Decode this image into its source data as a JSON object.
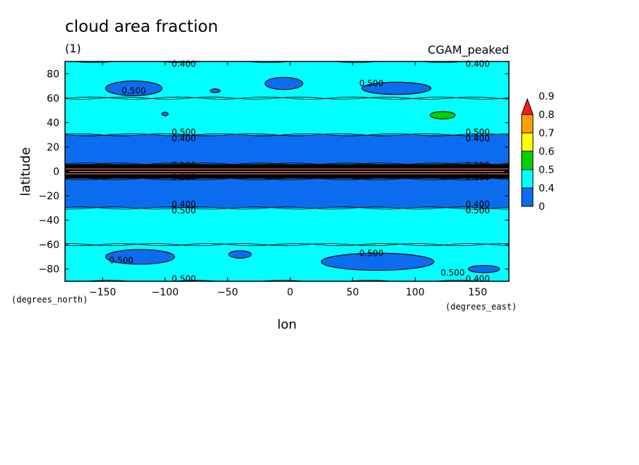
{
  "chart_data": {
    "type": "heatmap",
    "title": "cloud area fraction",
    "subtitle_left": "(1)",
    "subtitle_right": "CGAM_peaked",
    "xlabel": "lon",
    "ylabel": "latitude",
    "x_unit": "(degrees_east)",
    "y_unit": "(degrees_north)",
    "xlim": [
      -180,
      175
    ],
    "ylim": [
      -90,
      90
    ],
    "x_ticks": [
      {
        "value": -150,
        "label": "−150"
      },
      {
        "value": -100,
        "label": "−100"
      },
      {
        "value": -50,
        "label": "−50"
      },
      {
        "value": 0,
        "label": "0"
      },
      {
        "value": 50,
        "label": "50"
      },
      {
        "value": 100,
        "label": "100"
      },
      {
        "value": 150,
        "label": "150"
      }
    ],
    "y_ticks": [
      {
        "value": 80,
        "label": "80"
      },
      {
        "value": 60,
        "label": "60"
      },
      {
        "value": 40,
        "label": "40"
      },
      {
        "value": 20,
        "label": "20"
      },
      {
        "value": 0,
        "label": "0"
      },
      {
        "value": -20,
        "label": "−20"
      },
      {
        "value": -40,
        "label": "−40"
      },
      {
        "value": -60,
        "label": "−60"
      },
      {
        "value": -80,
        "label": "−80"
      }
    ],
    "colorbar": {
      "labels": [
        "0",
        "0.4",
        "0.5",
        "0.6",
        "0.7",
        "0.8",
        "0.9"
      ],
      "colors": [
        "#0c6cf0",
        "#00ffff",
        "#00d200",
        "#ffff00",
        "#ffa000",
        "#ff1a1a"
      ],
      "overflow_arrow": true
    },
    "bands": [
      {
        "lat_min": 60,
        "lat_max": 90,
        "value": 0.55,
        "color": "#00ffff"
      },
      {
        "lat_min": 30,
        "lat_max": 60,
        "value": 0.52,
        "color": "#00ffff"
      },
      {
        "lat_min": 6,
        "lat_max": 30,
        "value": 0.45,
        "color": "#0c6cf0"
      },
      {
        "lat_min": -6,
        "lat_max": 6,
        "value": 0.3,
        "color": "#000000"
      },
      {
        "lat_min": -30,
        "lat_max": -6,
        "value": 0.45,
        "color": "#0c6cf0"
      },
      {
        "lat_min": -60,
        "lat_max": -30,
        "value": 0.52,
        "color": "#00ffff"
      },
      {
        "lat_min": -90,
        "lat_max": -60,
        "value": 0.55,
        "color": "#00ffff"
      }
    ],
    "contour_labels": [
      {
        "lon": -85,
        "lat": 88,
        "text": "0.400"
      },
      {
        "lon": -125,
        "lat": 66,
        "text": "0.500"
      },
      {
        "lon": 65,
        "lat": 72,
        "text": "0.500"
      },
      {
        "lon": 150,
        "lat": 88,
        "text": "0.400"
      },
      {
        "lon": -85,
        "lat": 32,
        "text": "0.500"
      },
      {
        "lon": -85,
        "lat": 27,
        "text": "0.400"
      },
      {
        "lon": 150,
        "lat": 32,
        "text": "0.500"
      },
      {
        "lon": 150,
        "lat": 27,
        "text": "0.400"
      },
      {
        "lon": -85,
        "lat": 5,
        "text": "0.100"
      },
      {
        "lon": -85,
        "lat": -5,
        "text": "0.100"
      },
      {
        "lon": 150,
        "lat": 5,
        "text": "0.100"
      },
      {
        "lon": 150,
        "lat": -5,
        "text": "0.100"
      },
      {
        "lon": -85,
        "lat": -27,
        "text": "0.400"
      },
      {
        "lon": -85,
        "lat": -32,
        "text": "0.500"
      },
      {
        "lon": 150,
        "lat": -27,
        "text": "0.400"
      },
      {
        "lon": 150,
        "lat": -32,
        "text": "0.500"
      },
      {
        "lon": -135,
        "lat": -73,
        "text": "0.500"
      },
      {
        "lon": 65,
        "lat": -67,
        "text": "0.500"
      },
      {
        "lon": 130,
        "lat": -83,
        "text": "0.500"
      },
      {
        "lon": -85,
        "lat": -88,
        "text": "0.500"
      },
      {
        "lon": 150,
        "lat": -88,
        "text": "0.400"
      }
    ],
    "patches": [
      {
        "lon": -125,
        "lat": 68,
        "w": 45,
        "h": 12,
        "value": 0.45,
        "color": "#0c6cf0"
      },
      {
        "lon": -60,
        "lat": 66,
        "w": 8,
        "h": 3,
        "value": 0.45,
        "color": "#0c6cf0"
      },
      {
        "lon": -5,
        "lat": 72,
        "w": 30,
        "h": 10,
        "value": 0.45,
        "color": "#0c6cf0"
      },
      {
        "lon": 85,
        "lat": 68,
        "w": 55,
        "h": 10,
        "value": 0.45,
        "color": "#0c6cf0"
      },
      {
        "lon": -100,
        "lat": 47,
        "w": 5,
        "h": 3,
        "value": 0.45,
        "color": "#0c6cf0"
      },
      {
        "lon": 122,
        "lat": 46,
        "w": 20,
        "h": 6,
        "value": 0.62,
        "color": "#00d200"
      },
      {
        "lon": -120,
        "lat": -70,
        "w": 55,
        "h": 12,
        "value": 0.45,
        "color": "#0c6cf0"
      },
      {
        "lon": -40,
        "lat": -68,
        "w": 18,
        "h": 6,
        "value": 0.45,
        "color": "#0c6cf0"
      },
      {
        "lon": 70,
        "lat": -74,
        "w": 90,
        "h": 14,
        "value": 0.45,
        "color": "#0c6cf0"
      },
      {
        "lon": 155,
        "lat": -80,
        "w": 25,
        "h": 6,
        "value": 0.45,
        "color": "#0c6cf0"
      }
    ]
  }
}
